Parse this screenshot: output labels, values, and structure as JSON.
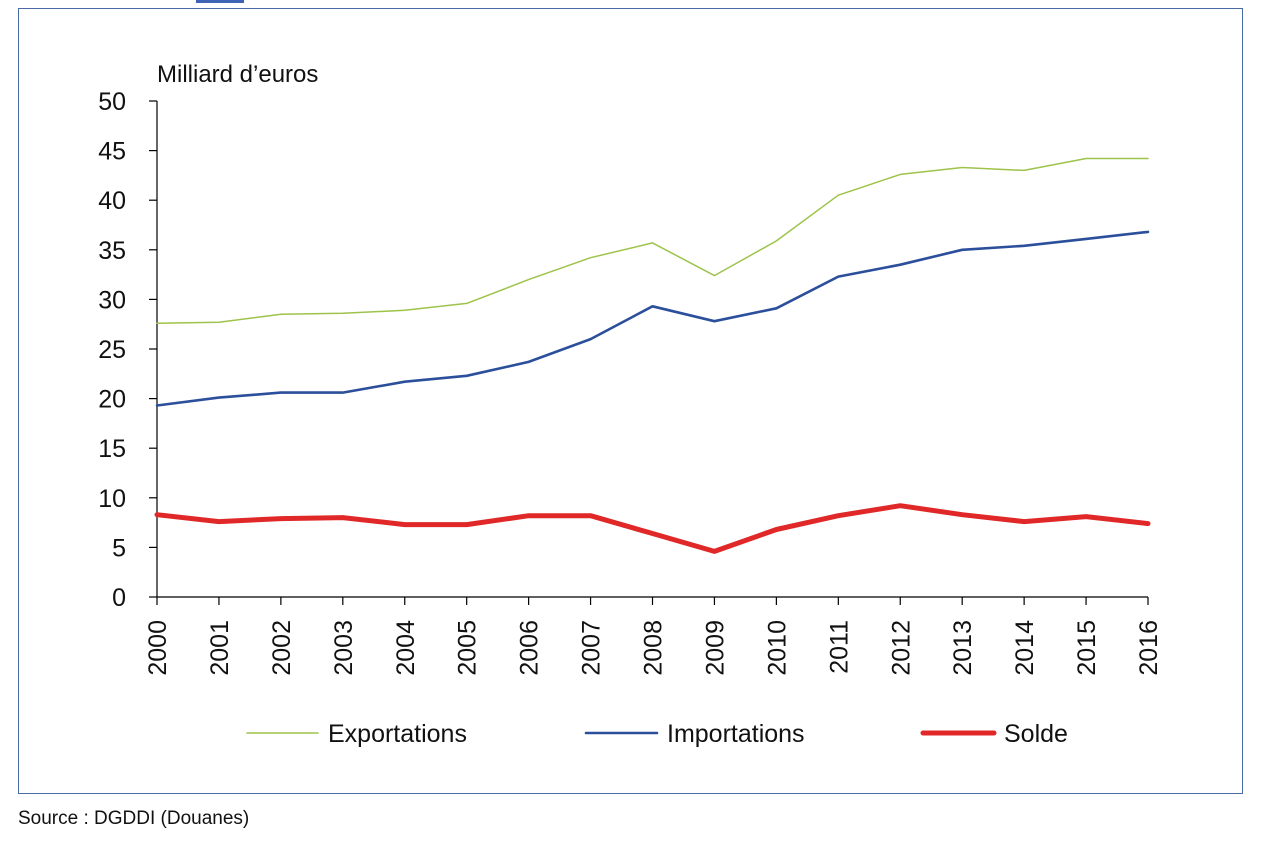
{
  "source_note": "Source : DGDDI (Douanes)",
  "colors": {
    "frame": "#4a6aa5",
    "axis": "#000000",
    "text": "#111111"
  },
  "chart_data": {
    "type": "line",
    "title": "",
    "xlabel": "",
    "ylabel": "Milliard d’euros",
    "ylim": [
      0,
      50
    ],
    "yticks": [
      0,
      5,
      10,
      15,
      20,
      25,
      30,
      35,
      40,
      45,
      50
    ],
    "grid": false,
    "legend_position": "bottom",
    "x": [
      "2000",
      "2001",
      "2002",
      "2003",
      "2004",
      "2005",
      "2006",
      "2007",
      "2008",
      "2009",
      "2010",
      "2011",
      "2012",
      "2013",
      "2014",
      "2015",
      "2016"
    ],
    "series": [
      {
        "name": "Exportations",
        "color": "#9dc34a",
        "line_style": "thin",
        "values": [
          27.6,
          27.7,
          28.5,
          28.6,
          28.9,
          29.6,
          32.0,
          34.2,
          35.7,
          32.4,
          35.9,
          40.5,
          42.6,
          43.3,
          43.0,
          44.2,
          44.2
        ]
      },
      {
        "name": "Importations",
        "color": "#2c4f9c",
        "line_style": "medium",
        "values": [
          19.3,
          20.1,
          20.6,
          20.6,
          21.7,
          22.3,
          23.7,
          26.0,
          29.3,
          27.8,
          29.1,
          32.3,
          33.5,
          35.0,
          35.4,
          36.1,
          36.8
        ]
      },
      {
        "name": "Solde",
        "color": "#e02828",
        "line_style": "thick",
        "values": [
          8.3,
          7.6,
          7.9,
          8.0,
          7.3,
          7.3,
          8.2,
          8.2,
          6.4,
          4.6,
          6.8,
          8.2,
          9.2,
          8.3,
          7.6,
          8.1,
          7.4
        ]
      }
    ]
  }
}
